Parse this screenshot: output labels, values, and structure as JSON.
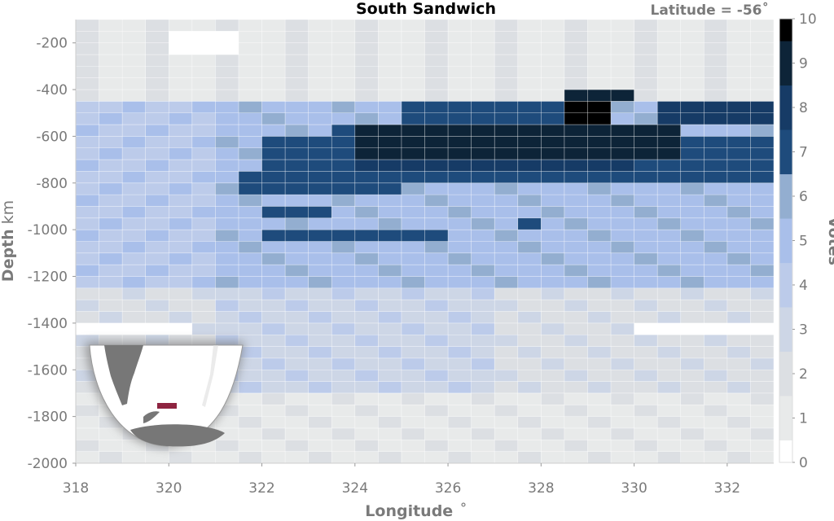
{
  "chart_data": {
    "type": "heatmap",
    "title": "South Sandwich",
    "annotation": "Latitude = -56˚",
    "xlabel": "Longitude",
    "xlabel_unit": "˚",
    "ylabel": "Depth",
    "ylabel_unit": "km",
    "colorbar_label": "Votes",
    "xlim": [
      318,
      333
    ],
    "ylim": [
      -2000,
      -100
    ],
    "x_ticks": [
      "318",
      "320",
      "322",
      "324",
      "326",
      "328",
      "330",
      "332"
    ],
    "y_ticks": [
      "-200",
      "-400",
      "-600",
      "-800",
      "-1000",
      "-1200",
      "-1400",
      "-1600",
      "-1800",
      "-2000"
    ],
    "colorbar_ticks": [
      "0",
      "1",
      "2",
      "3",
      "4",
      "5",
      "6",
      "7",
      "8",
      "9",
      "10"
    ],
    "colorbar_range": [
      0,
      10
    ],
    "colorscale": [
      "#ffffff",
      "#e8eaea",
      "#dcdfe3",
      "#cdd6e6",
      "#bccbea",
      "#a9bfea",
      "#93aed0",
      "#1e4b7c",
      "#163b66",
      "#0d2438",
      "#000000"
    ],
    "cell_width_deg": 0.5,
    "cell_height_km": 50,
    "legend": "colorbar right",
    "grid": true,
    "inset_map": {
      "highlight_color": "#8e2440",
      "land_color": "#777777"
    }
  }
}
